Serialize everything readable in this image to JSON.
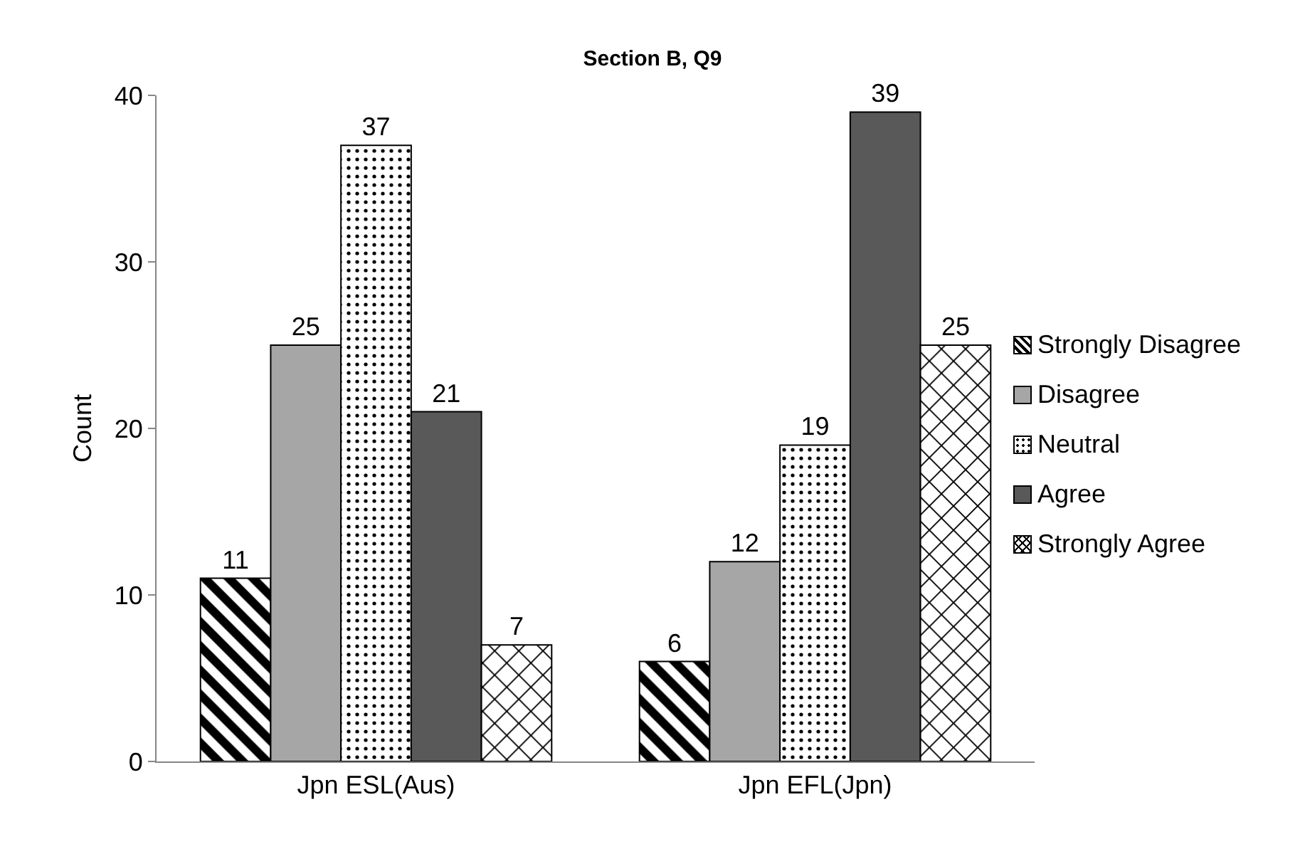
{
  "chart_data": {
    "type": "bar",
    "title": "Section B, Q9",
    "ylabel": "Count",
    "categories": [
      "Jpn ESL(Aus)",
      "Jpn EFL(Jpn)"
    ],
    "series": [
      {
        "name": "Strongly Disagree",
        "color": "#000000",
        "values": [
          11,
          6
        ]
      },
      {
        "name": "Disagree",
        "color": "#a6a6a6",
        "values": [
          25,
          12
        ]
      },
      {
        "name": "Neutral",
        "color": "#000000",
        "values": [
          37,
          19
        ]
      },
      {
        "name": "Agree",
        "color": "#595959",
        "values": [
          21,
          39
        ]
      },
      {
        "name": "Strongly Agree",
        "color": "#000000",
        "values": [
          7,
          25
        ]
      }
    ],
    "ylim": [
      0,
      40
    ],
    "yticks": [
      0,
      10,
      20,
      30,
      40
    ],
    "grid": false,
    "legend": "right",
    "data_labels": true
  }
}
